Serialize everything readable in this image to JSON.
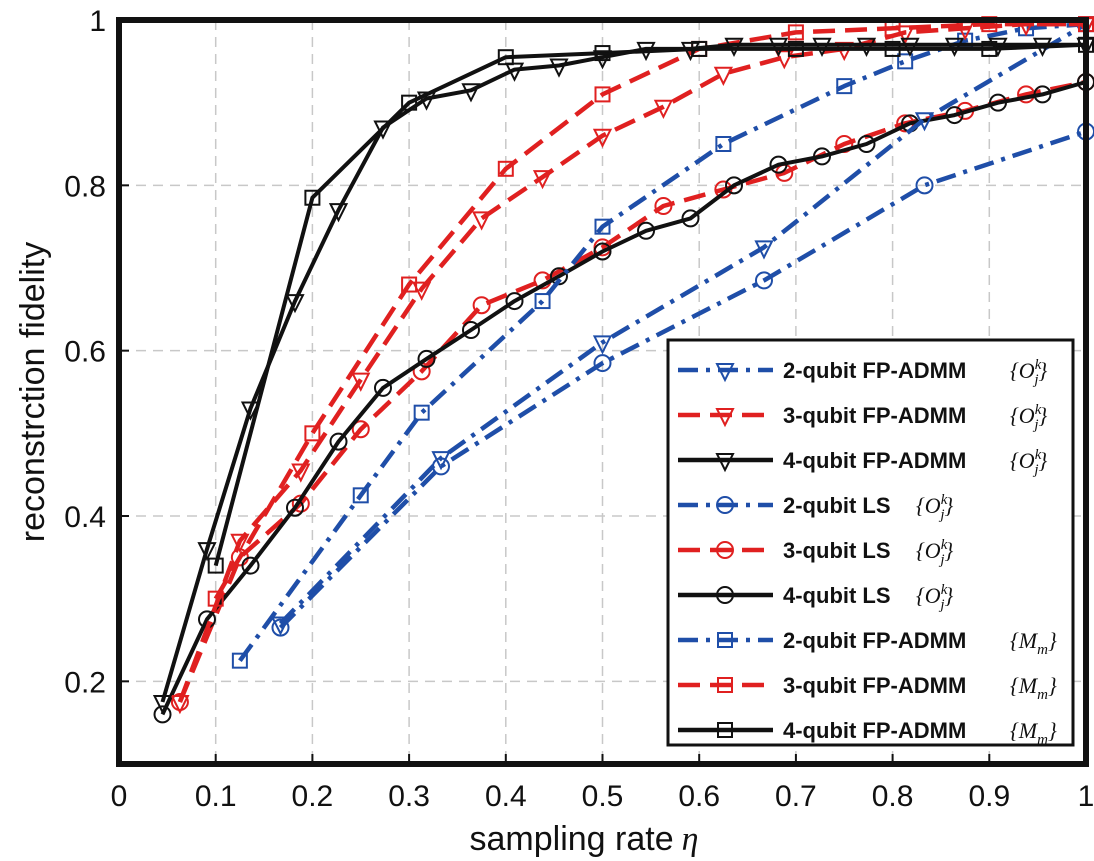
{
  "chart_data": {
    "type": "line",
    "title": "",
    "xlabel": "sampling rate",
    "xlabel_symbol": "η",
    "ylabel": "reconstrction fidelity",
    "xlim": [
      0,
      1
    ],
    "ylim": [
      0.1,
      1.0
    ],
    "xticks": [
      0,
      0.1,
      0.2,
      0.3,
      0.4,
      0.5,
      0.6,
      0.7,
      0.8,
      0.9,
      1
    ],
    "xtick_labels": [
      "0",
      "0.1",
      "0.2",
      "0.3",
      "0.4",
      "0.5",
      "0.6",
      "0.7",
      "0.8",
      "0.9",
      "1"
    ],
    "yticks": [
      0.2,
      0.4,
      0.6,
      0.8,
      1.0
    ],
    "ytick_labels": [
      "0.2",
      "0.4",
      "0.6",
      "0.8",
      "1"
    ],
    "grid": true,
    "legend_position": "bottom-right",
    "series": [
      {
        "name": "2-qubit FP-ADMM",
        "set": "{O_j^k}",
        "color": "#1f4ea8",
        "dash": "dashdot",
        "marker": "triangle-down",
        "x": [
          0.167,
          0.333,
          0.5,
          0.667,
          0.833,
          1.0
        ],
        "y": [
          0.27,
          0.47,
          0.61,
          0.725,
          0.88,
          0.995
        ]
      },
      {
        "name": "3-qubit FP-ADMM",
        "set": "{O_j^k}",
        "color": "#e02020",
        "dash": "dashed",
        "marker": "triangle-down",
        "x": [
          0.063,
          0.125,
          0.188,
          0.25,
          0.313,
          0.375,
          0.438,
          0.5,
          0.563,
          0.625,
          0.688,
          0.75,
          0.813,
          0.875,
          0.938,
          1.0
        ],
        "y": [
          0.175,
          0.37,
          0.455,
          0.565,
          0.675,
          0.76,
          0.81,
          0.86,
          0.895,
          0.935,
          0.955,
          0.965,
          0.985,
          0.99,
          0.995,
          0.995
        ]
      },
      {
        "name": "4-qubit FP-ADMM",
        "set": "{O_j^k}",
        "color": "#111111",
        "dash": "solid",
        "marker": "triangle-down",
        "x": [
          0.045,
          0.091,
          0.136,
          0.182,
          0.227,
          0.273,
          0.318,
          0.364,
          0.409,
          0.455,
          0.5,
          0.545,
          0.591,
          0.636,
          0.682,
          0.727,
          0.773,
          0.818,
          0.864,
          0.909,
          0.955,
          1.0
        ],
        "y": [
          0.175,
          0.36,
          0.53,
          0.66,
          0.77,
          0.87,
          0.905,
          0.915,
          0.94,
          0.945,
          0.955,
          0.965,
          0.965,
          0.97,
          0.97,
          0.97,
          0.97,
          0.97,
          0.97,
          0.97,
          0.97,
          0.97
        ]
      },
      {
        "name": "2-qubit LS",
        "set": "{O_j^k}",
        "color": "#1f4ea8",
        "dash": "dashdot",
        "marker": "circle",
        "x": [
          0.167,
          0.333,
          0.5,
          0.667,
          0.833,
          1.0
        ],
        "y": [
          0.265,
          0.46,
          0.585,
          0.685,
          0.8,
          0.865
        ]
      },
      {
        "name": "3-qubit LS",
        "set": "{O_j^k}",
        "color": "#e02020",
        "dash": "dashed",
        "marker": "circle",
        "x": [
          0.063,
          0.125,
          0.188,
          0.25,
          0.313,
          0.375,
          0.438,
          0.5,
          0.563,
          0.625,
          0.688,
          0.75,
          0.813,
          0.875,
          0.938,
          1.0
        ],
        "y": [
          0.175,
          0.35,
          0.415,
          0.505,
          0.575,
          0.655,
          0.685,
          0.725,
          0.775,
          0.795,
          0.815,
          0.85,
          0.875,
          0.89,
          0.91,
          0.925
        ]
      },
      {
        "name": "4-qubit LS",
        "set": "{O_j^k}",
        "color": "#111111",
        "dash": "solid",
        "marker": "circle",
        "x": [
          0.045,
          0.091,
          0.136,
          0.182,
          0.227,
          0.273,
          0.318,
          0.364,
          0.409,
          0.455,
          0.5,
          0.545,
          0.591,
          0.636,
          0.682,
          0.727,
          0.773,
          0.818,
          0.864,
          0.909,
          0.955,
          1.0
        ],
        "y": [
          0.16,
          0.275,
          0.34,
          0.41,
          0.49,
          0.555,
          0.59,
          0.625,
          0.66,
          0.69,
          0.72,
          0.745,
          0.76,
          0.8,
          0.825,
          0.835,
          0.85,
          0.875,
          0.885,
          0.9,
          0.91,
          0.925
        ]
      },
      {
        "name": "2-qubit FP-ADMM",
        "set": "{M_m}",
        "color": "#1f4ea8",
        "dash": "dashdot",
        "marker": "square",
        "x": [
          0.125,
          0.25,
          0.313,
          0.438,
          0.5,
          0.625,
          0.75,
          0.813,
          0.875,
          0.938,
          1.0
        ],
        "y": [
          0.225,
          0.425,
          0.525,
          0.66,
          0.75,
          0.85,
          0.92,
          0.95,
          0.975,
          0.99,
          0.995
        ]
      },
      {
        "name": "3-qubit FP-ADMM",
        "set": "{M_m}",
        "color": "#e02020",
        "dash": "dashed",
        "marker": "square",
        "x": [
          0.1,
          0.2,
          0.3,
          0.4,
          0.5,
          0.6,
          0.7,
          0.8,
          0.9,
          1.0
        ],
        "y": [
          0.3,
          0.5,
          0.68,
          0.82,
          0.91,
          0.965,
          0.985,
          0.99,
          0.995,
          0.995
        ]
      },
      {
        "name": "4-qubit FP-ADMM",
        "set": "{M_m}",
        "color": "#111111",
        "dash": "solid",
        "marker": "square",
        "x": [
          0.1,
          0.2,
          0.3,
          0.4,
          0.5,
          0.6,
          0.7,
          0.8,
          0.9,
          1.0
        ],
        "y": [
          0.34,
          0.785,
          0.9,
          0.955,
          0.96,
          0.965,
          0.965,
          0.965,
          0.965,
          0.97
        ]
      }
    ]
  }
}
